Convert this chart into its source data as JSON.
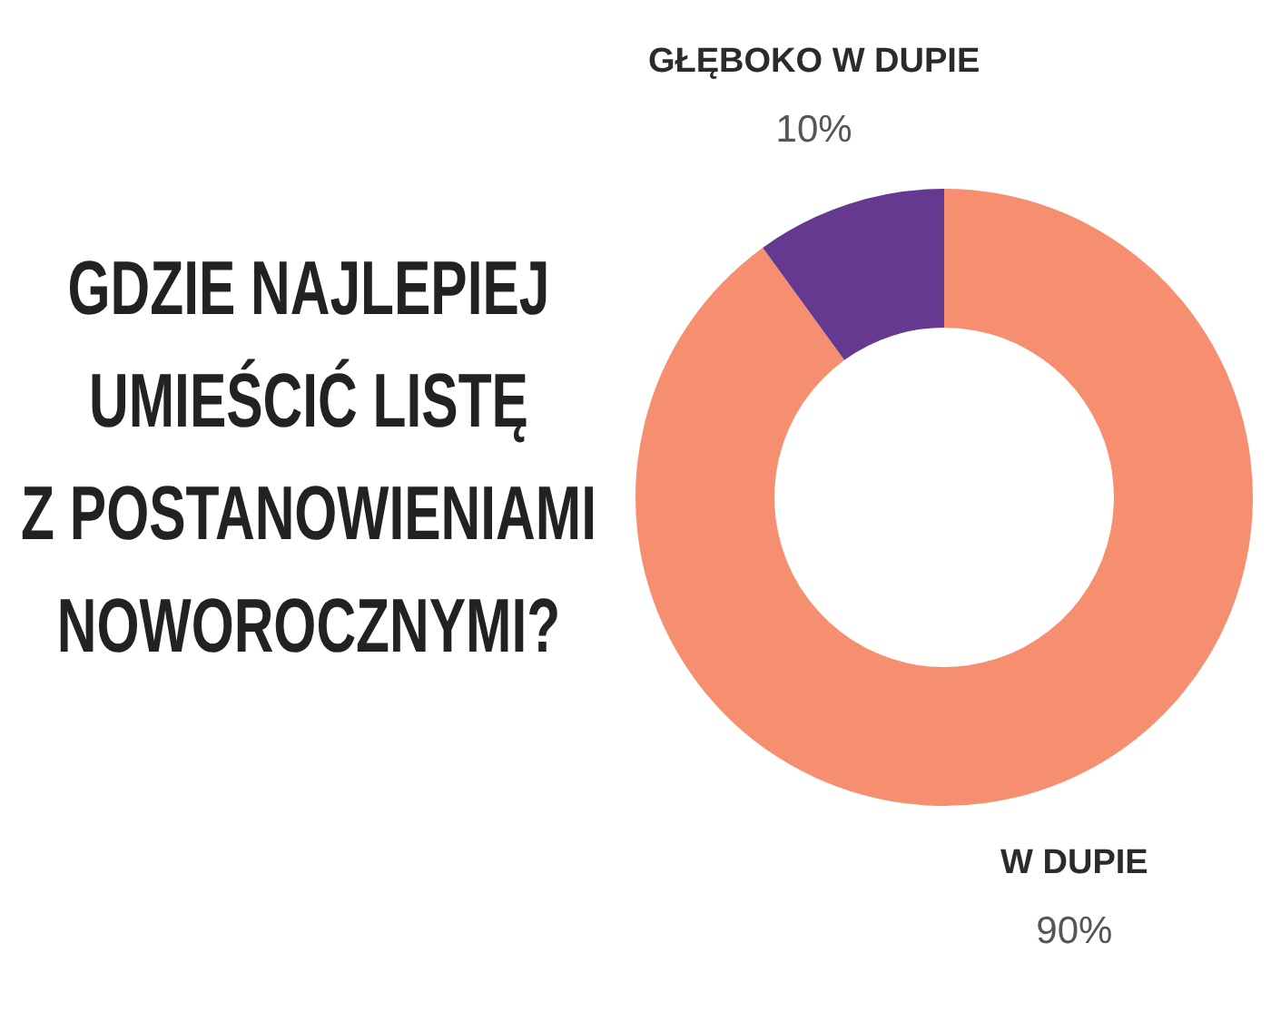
{
  "chart_data": {
    "type": "donut",
    "title": "GDZIE NAJLEPIEJ\nUMIEŚCIĆ LISTĘ\nZ POSTANOWIENIAMI\nNOWOROCZNYMI?",
    "categories": [
      "W DUPIE",
      "GŁĘBOKO W DUPIE"
    ],
    "values": [
      90,
      10
    ],
    "colors": [
      "#f58f6f",
      "#65398f"
    ],
    "value_labels": [
      "90%",
      "10%"
    ]
  }
}
